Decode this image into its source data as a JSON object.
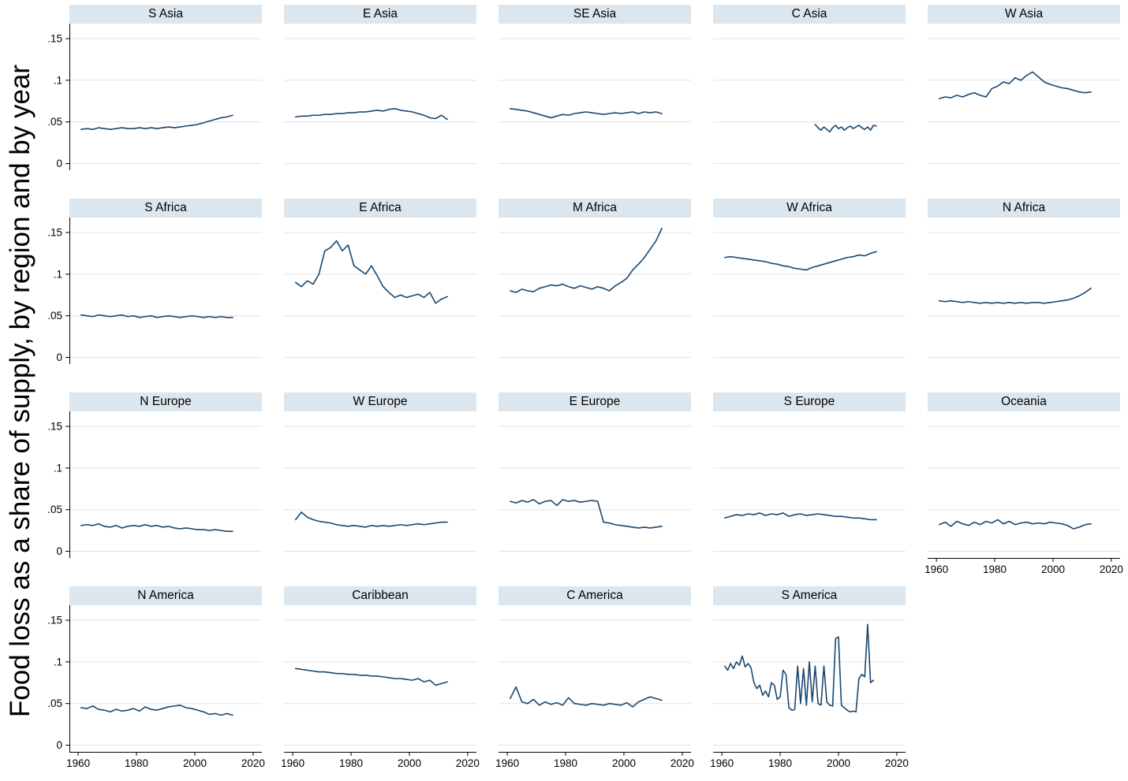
{
  "figure": {
    "y_axis_title": "Food loss as a share of supply, by region and by year"
  },
  "chart_data": {
    "type": "line",
    "title": "Food loss as a share of supply, by region and by year",
    "layout": {
      "rows": 4,
      "cols": 5,
      "grid_on": true,
      "legend": "none"
    },
    "line_color": "#1a476f",
    "header_bg": "#dbe6ee",
    "gridline_color": "#e3e3e3",
    "xlim": [
      1957,
      2023
    ],
    "ylim": [
      -0.008,
      0.168
    ],
    "x_ticks": {
      "values": [
        1960,
        1980,
        2000,
        2020
      ],
      "labels": [
        "1960",
        "1980",
        "2000",
        "2020"
      ]
    },
    "y_ticks": {
      "values": [
        0,
        0.05,
        0.1,
        0.15
      ],
      "labels": [
        "0",
        ".05",
        ".1",
        ".15"
      ]
    },
    "panels": [
      {
        "title": "S Asia",
        "x_start": 1961,
        "x_step": 2,
        "show_y_labels": true,
        "show_x_labels": false,
        "values": [
          0.041,
          0.042,
          0.041,
          0.043,
          0.042,
          0.041,
          0.042,
          0.043,
          0.042,
          0.042,
          0.043,
          0.042,
          0.043,
          0.042,
          0.043,
          0.044,
          0.043,
          0.044,
          0.045,
          0.046,
          0.047,
          0.049,
          0.051,
          0.053,
          0.055,
          0.056,
          0.058
        ]
      },
      {
        "title": "E Asia",
        "x_start": 1961,
        "x_step": 2,
        "show_y_labels": false,
        "show_x_labels": false,
        "values": [
          0.056,
          0.057,
          0.057,
          0.058,
          0.058,
          0.059,
          0.059,
          0.06,
          0.06,
          0.061,
          0.061,
          0.062,
          0.062,
          0.063,
          0.064,
          0.063,
          0.065,
          0.066,
          0.064,
          0.063,
          0.062,
          0.06,
          0.058,
          0.055,
          0.054,
          0.058,
          0.053
        ]
      },
      {
        "title": "SE Asia",
        "x_start": 1961,
        "x_step": 2,
        "show_y_labels": false,
        "show_x_labels": false,
        "values": [
          0.066,
          0.065,
          0.064,
          0.063,
          0.061,
          0.059,
          0.057,
          0.055,
          0.057,
          0.059,
          0.058,
          0.06,
          0.061,
          0.062,
          0.061,
          0.06,
          0.059,
          0.06,
          0.061,
          0.06,
          0.061,
          0.062,
          0.06,
          0.062,
          0.061,
          0.062,
          0.06
        ]
      },
      {
        "title": "C Asia",
        "x_start": 1992,
        "x_step": 1,
        "show_y_labels": false,
        "show_x_labels": false,
        "values": [
          0.047,
          0.043,
          0.04,
          0.044,
          0.041,
          0.038,
          0.043,
          0.046,
          0.042,
          0.044,
          0.04,
          0.043,
          0.045,
          0.042,
          0.044,
          0.046,
          0.043,
          0.041,
          0.044,
          0.04,
          0.046,
          0.045
        ]
      },
      {
        "title": "W Asia",
        "x_start": 1961,
        "x_step": 2,
        "show_y_labels": false,
        "show_x_labels": false,
        "values": [
          0.078,
          0.08,
          0.079,
          0.082,
          0.08,
          0.083,
          0.085,
          0.082,
          0.08,
          0.09,
          0.093,
          0.098,
          0.096,
          0.103,
          0.1,
          0.106,
          0.11,
          0.104,
          0.098,
          0.095,
          0.093,
          0.091,
          0.09,
          0.088,
          0.086,
          0.085,
          0.086
        ]
      },
      {
        "title": "S Africa",
        "x_start": 1961,
        "x_step": 2,
        "show_y_labels": true,
        "show_x_labels": false,
        "values": [
          0.051,
          0.05,
          0.049,
          0.051,
          0.05,
          0.049,
          0.05,
          0.051,
          0.049,
          0.05,
          0.048,
          0.049,
          0.05,
          0.048,
          0.049,
          0.05,
          0.049,
          0.048,
          0.049,
          0.05,
          0.049,
          0.048,
          0.049,
          0.048,
          0.049,
          0.048,
          0.048
        ]
      },
      {
        "title": "E Africa",
        "x_start": 1961,
        "x_step": 2,
        "show_y_labels": false,
        "show_x_labels": false,
        "values": [
          0.09,
          0.085,
          0.092,
          0.088,
          0.1,
          0.128,
          0.132,
          0.14,
          0.128,
          0.135,
          0.11,
          0.105,
          0.1,
          0.11,
          0.098,
          0.085,
          0.078,
          0.072,
          0.075,
          0.072,
          0.074,
          0.076,
          0.072,
          0.078,
          0.065,
          0.07,
          0.073
        ]
      },
      {
        "title": "M Africa",
        "x_start": 1961,
        "x_step": 2,
        "show_y_labels": false,
        "show_x_labels": false,
        "values": [
          0.08,
          0.078,
          0.082,
          0.08,
          0.079,
          0.083,
          0.085,
          0.087,
          0.086,
          0.088,
          0.085,
          0.083,
          0.086,
          0.084,
          0.082,
          0.085,
          0.083,
          0.08,
          0.086,
          0.09,
          0.095,
          0.105,
          0.112,
          0.12,
          0.13,
          0.14,
          0.155
        ]
      },
      {
        "title": "W Africa",
        "x_start": 1961,
        "x_step": 2,
        "show_y_labels": false,
        "show_x_labels": false,
        "values": [
          0.12,
          0.121,
          0.12,
          0.119,
          0.118,
          0.117,
          0.116,
          0.115,
          0.113,
          0.112,
          0.11,
          0.109,
          0.107,
          0.106,
          0.105,
          0.108,
          0.11,
          0.112,
          0.114,
          0.116,
          0.118,
          0.12,
          0.121,
          0.123,
          0.122,
          0.125,
          0.127
        ]
      },
      {
        "title": "N Africa",
        "x_start": 1961,
        "x_step": 2,
        "show_y_labels": false,
        "show_x_labels": false,
        "values": [
          0.068,
          0.067,
          0.068,
          0.067,
          0.066,
          0.067,
          0.066,
          0.065,
          0.066,
          0.065,
          0.066,
          0.065,
          0.066,
          0.065,
          0.066,
          0.065,
          0.066,
          0.066,
          0.065,
          0.066,
          0.067,
          0.068,
          0.069,
          0.071,
          0.074,
          0.078,
          0.083
        ]
      },
      {
        "title": "N Europe",
        "x_start": 1961,
        "x_step": 2,
        "show_y_labels": true,
        "show_x_labels": false,
        "values": [
          0.031,
          0.032,
          0.031,
          0.033,
          0.03,
          0.029,
          0.031,
          0.028,
          0.03,
          0.031,
          0.03,
          0.032,
          0.03,
          0.031,
          0.029,
          0.03,
          0.028,
          0.027,
          0.028,
          0.027,
          0.026,
          0.026,
          0.025,
          0.026,
          0.025,
          0.024,
          0.024
        ]
      },
      {
        "title": "W Europe",
        "x_start": 1961,
        "x_step": 2,
        "show_y_labels": false,
        "show_x_labels": false,
        "values": [
          0.038,
          0.047,
          0.041,
          0.038,
          0.036,
          0.035,
          0.034,
          0.032,
          0.031,
          0.03,
          0.031,
          0.03,
          0.029,
          0.031,
          0.03,
          0.031,
          0.03,
          0.031,
          0.032,
          0.031,
          0.032,
          0.033,
          0.032,
          0.033,
          0.034,
          0.035,
          0.035
        ]
      },
      {
        "title": "E Europe",
        "x_start": 1961,
        "x_step": 2,
        "show_y_labels": false,
        "show_x_labels": false,
        "values": [
          0.06,
          0.058,
          0.061,
          0.059,
          0.062,
          0.057,
          0.06,
          0.061,
          0.055,
          0.062,
          0.06,
          0.061,
          0.059,
          0.06,
          0.061,
          0.06,
          0.035,
          0.034,
          0.032,
          0.031,
          0.03,
          0.029,
          0.028,
          0.029,
          0.028,
          0.029,
          0.03
        ]
      },
      {
        "title": "S Europe",
        "x_start": 1961,
        "x_step": 2,
        "show_y_labels": false,
        "show_x_labels": false,
        "values": [
          0.04,
          0.042,
          0.044,
          0.043,
          0.045,
          0.044,
          0.046,
          0.043,
          0.045,
          0.044,
          0.046,
          0.042,
          0.044,
          0.045,
          0.043,
          0.044,
          0.045,
          0.044,
          0.043,
          0.042,
          0.042,
          0.041,
          0.04,
          0.04,
          0.039,
          0.038,
          0.038
        ]
      },
      {
        "title": "Oceania",
        "x_start": 1961,
        "x_step": 2,
        "show_y_labels": false,
        "show_x_labels": true,
        "values": [
          0.032,
          0.035,
          0.03,
          0.036,
          0.033,
          0.031,
          0.035,
          0.032,
          0.036,
          0.034,
          0.038,
          0.033,
          0.036,
          0.032,
          0.034,
          0.035,
          0.033,
          0.034,
          0.033,
          0.035,
          0.034,
          0.033,
          0.031,
          0.027,
          0.029,
          0.032,
          0.033
        ]
      },
      {
        "title": "N America",
        "x_start": 1961,
        "x_step": 2,
        "show_y_labels": true,
        "show_x_labels": true,
        "values": [
          0.045,
          0.044,
          0.047,
          0.043,
          0.042,
          0.04,
          0.043,
          0.041,
          0.042,
          0.044,
          0.041,
          0.046,
          0.043,
          0.042,
          0.044,
          0.046,
          0.047,
          0.048,
          0.045,
          0.044,
          0.042,
          0.04,
          0.037,
          0.038,
          0.036,
          0.038,
          0.036
        ]
      },
      {
        "title": "Caribbean",
        "x_start": 1961,
        "x_step": 2,
        "show_y_labels": false,
        "show_x_labels": true,
        "values": [
          0.092,
          0.091,
          0.09,
          0.089,
          0.088,
          0.088,
          0.087,
          0.086,
          0.086,
          0.085,
          0.085,
          0.084,
          0.084,
          0.083,
          0.083,
          0.082,
          0.081,
          0.08,
          0.08,
          0.079,
          0.078,
          0.08,
          0.076,
          0.078,
          0.072,
          0.074,
          0.076
        ]
      },
      {
        "title": "C America",
        "x_start": 1961,
        "x_step": 2,
        "show_y_labels": false,
        "show_x_labels": true,
        "values": [
          0.056,
          0.07,
          0.052,
          0.05,
          0.055,
          0.048,
          0.052,
          0.049,
          0.051,
          0.048,
          0.057,
          0.05,
          0.049,
          0.048,
          0.05,
          0.049,
          0.048,
          0.05,
          0.049,
          0.048,
          0.051,
          0.046,
          0.052,
          0.055,
          0.058,
          0.056,
          0.054
        ]
      },
      {
        "title": "S America",
        "x_start": 1961,
        "x_step": 1,
        "show_y_labels": false,
        "show_x_labels": true,
        "values": [
          0.095,
          0.09,
          0.098,
          0.092,
          0.1,
          0.096,
          0.107,
          0.094,
          0.098,
          0.093,
          0.075,
          0.068,
          0.072,
          0.06,
          0.065,
          0.058,
          0.075,
          0.072,
          0.055,
          0.058,
          0.09,
          0.085,
          0.045,
          0.042,
          0.043,
          0.095,
          0.05,
          0.092,
          0.048,
          0.1,
          0.052,
          0.095,
          0.05,
          0.048,
          0.095,
          0.052,
          0.048,
          0.047,
          0.128,
          0.13,
          0.048,
          0.045,
          0.042,
          0.04,
          0.041,
          0.04,
          0.08,
          0.085,
          0.082,
          0.145,
          0.075,
          0.078
        ]
      }
    ]
  }
}
